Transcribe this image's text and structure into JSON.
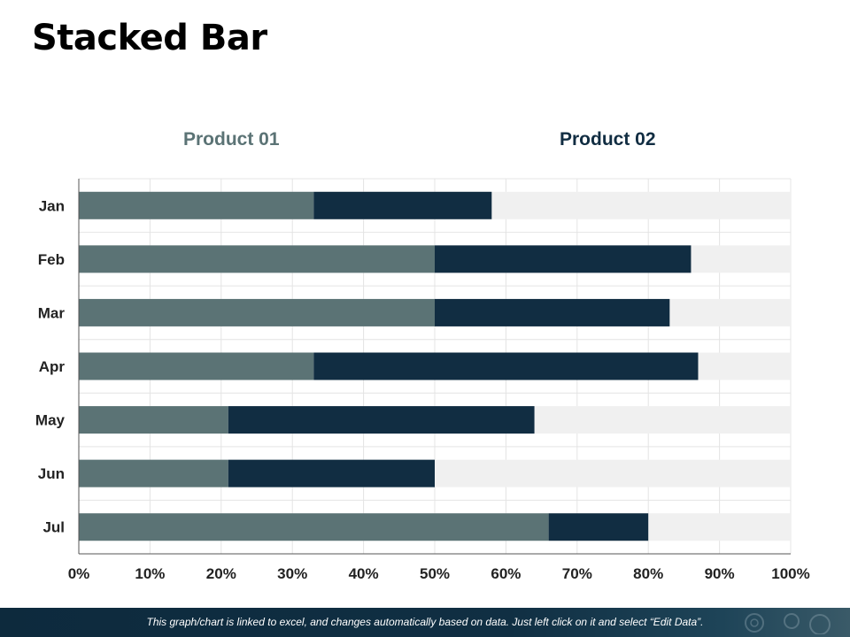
{
  "title": "Stacked Bar",
  "footer_note": "This graph/chart is linked to excel, and changes automatically based on data. Just left click on it and select “Edit Data”.",
  "colors": {
    "product_01": "#5b7375",
    "product_02": "#112d42",
    "remainder": "#f0f0f0",
    "grid": "#e4e4e4",
    "axis": "#555555"
  },
  "chart_data": {
    "type": "bar",
    "orientation": "horizontal",
    "stacked": true,
    "categories": [
      "Jan",
      "Feb",
      "Mar",
      "Apr",
      "May",
      "Jun",
      "Jul"
    ],
    "series": [
      {
        "name": "Product 01",
        "values": [
          33,
          50,
          50,
          33,
          21,
          21,
          66
        ]
      },
      {
        "name": "Product 02",
        "values": [
          25,
          36,
          33,
          54,
          43,
          29,
          14
        ]
      }
    ],
    "remainder_to": 100,
    "xlim": [
      0,
      100
    ],
    "x_ticks": [
      "0%",
      "10%",
      "20%",
      "30%",
      "40%",
      "50%",
      "60%",
      "70%",
      "80%",
      "90%",
      "100%"
    ],
    "legend_position": "top",
    "grid": true
  }
}
